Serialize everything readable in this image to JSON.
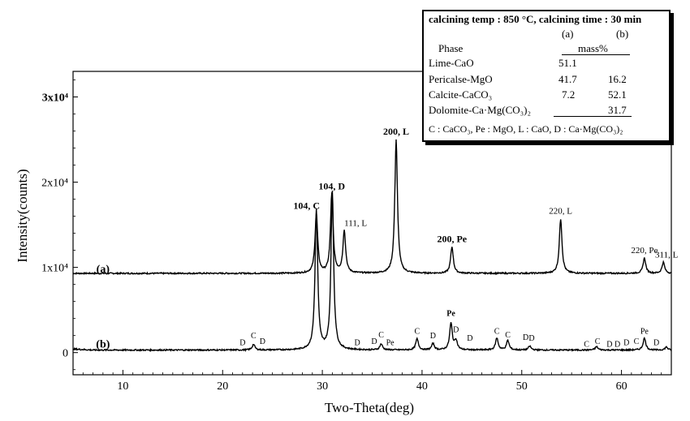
{
  "chart_data": {
    "type": "line",
    "xlabel": "Two-Theta(deg)",
    "ylabel": "Intensity(counts)",
    "xlim": [
      5,
      65
    ],
    "x_ticks": [
      10,
      20,
      30,
      40,
      50,
      60
    ],
    "y_ticks": [
      {
        "value": 0,
        "label": "0"
      },
      {
        "value": 10000,
        "label": "1x10⁴"
      },
      {
        "value": 20000,
        "label": "2x10⁴"
      },
      {
        "value": 30000,
        "label": "3x10⁴"
      }
    ],
    "ylim": [
      -2600,
      33000
    ],
    "series": [
      {
        "name": "(a)",
        "baseline": 9300,
        "peaks": [
          {
            "x": 29.4,
            "h": 7000
          },
          {
            "x": 30.95,
            "h": 9300
          },
          {
            "x": 32.2,
            "h": 5000
          },
          {
            "x": 37.4,
            "h": 15700
          },
          {
            "x": 43.0,
            "h": 3100
          },
          {
            "x": 53.9,
            "h": 6400
          },
          {
            "x": 62.3,
            "h": 1800
          },
          {
            "x": 64.2,
            "h": 1300
          }
        ]
      },
      {
        "name": "(b)",
        "baseline": 300,
        "peaks": [
          {
            "x": 23.1,
            "h": 650
          },
          {
            "x": 29.4,
            "h": 16400
          },
          {
            "x": 31.0,
            "h": 18500
          },
          {
            "x": 35.9,
            "h": 700
          },
          {
            "x": 39.5,
            "h": 1300
          },
          {
            "x": 41.1,
            "h": 750
          },
          {
            "x": 42.9,
            "h": 3100
          },
          {
            "x": 43.4,
            "h": 1100
          },
          {
            "x": 47.5,
            "h": 1400
          },
          {
            "x": 48.6,
            "h": 1100
          },
          {
            "x": 50.8,
            "h": 450
          },
          {
            "x": 57.5,
            "h": 400
          },
          {
            "x": 62.3,
            "h": 1400
          },
          {
            "x": 64.5,
            "h": 350
          }
        ]
      }
    ],
    "peak_labels_a": [
      {
        "text": "104, C",
        "x": 29.4,
        "bold": true
      },
      {
        "text": "104, D",
        "x": 30.95,
        "bold": true
      },
      {
        "text": "111, L",
        "x": 32.2,
        "bold": false
      },
      {
        "text": "200, L",
        "x": 37.4,
        "bold": true
      },
      {
        "text": "200, Pe",
        "x": 43.0,
        "bold": true
      },
      {
        "text": "220, L",
        "x": 53.9,
        "bold": false
      },
      {
        "text": "220, Pe",
        "x": 62.3,
        "bold": false
      },
      {
        "text": "311, L",
        "x": 64.2,
        "bold": false
      }
    ],
    "phase_letters_b": [
      {
        "text": "D",
        "x": 22.0,
        "y": 860
      },
      {
        "text": "C",
        "x": 23.1,
        "y": 1680
      },
      {
        "text": "D",
        "x": 24.0,
        "y": 1040
      },
      {
        "text": "D",
        "x": 33.5,
        "y": 870
      },
      {
        "text": "D",
        "x": 35.2,
        "y": 1040
      },
      {
        "text": "C",
        "x": 35.9,
        "y": 1770
      },
      {
        "text": "Pe",
        "x": 36.8,
        "y": 870
      },
      {
        "text": "C",
        "x": 39.5,
        "y": 2200
      },
      {
        "text": "D",
        "x": 41.1,
        "y": 1680
      },
      {
        "text": "Pe",
        "x": 42.9,
        "y": 4300
      },
      {
        "text": "D",
        "x": 43.4,
        "y": 2380
      },
      {
        "text": "D",
        "x": 44.8,
        "y": 1400
      },
      {
        "text": "C",
        "x": 47.5,
        "y": 2200
      },
      {
        "text": "C",
        "x": 48.6,
        "y": 1770
      },
      {
        "text": "D",
        "x": 50.4,
        "y": 1500
      },
      {
        "text": "D",
        "x": 51.0,
        "y": 1400
      },
      {
        "text": "C",
        "x": 56.5,
        "y": 690
      },
      {
        "text": "C",
        "x": 57.6,
        "y": 1040
      },
      {
        "text": "D",
        "x": 58.8,
        "y": 690
      },
      {
        "text": "D",
        "x": 59.6,
        "y": 690
      },
      {
        "text": "D",
        "x": 60.5,
        "y": 870
      },
      {
        "text": "C",
        "x": 61.5,
        "y": 1040
      },
      {
        "text": "Pe",
        "x": 62.3,
        "y": 2200
      },
      {
        "text": "D",
        "x": 63.5,
        "y": 870
      }
    ],
    "series_labels": [
      {
        "text": "(a)",
        "x": 8.0,
        "y": 9400
      },
      {
        "text": "(b)",
        "x": 8.0,
        "y": 600
      }
    ]
  },
  "table": {
    "title": "calcining temp : 850 °C, calcining time : 30 min",
    "col_a": "(a)",
    "col_b": "(b)",
    "phase_header": "Phase",
    "unit_header": "mass%",
    "rows": [
      {
        "phase": "Lime-CaO",
        "a": "51.1",
        "b": ""
      },
      {
        "phase": "Pericalse-MgO",
        "a": "41.7",
        "b": "16.2"
      },
      {
        "phase": "Calcite-CaCO₃",
        "a": "7.2",
        "b": "52.1"
      },
      {
        "phase": "Dolomite-Ca·Mg(CO₃)₂",
        "a": "",
        "b": "31.7"
      }
    ],
    "footnote": "C : CaCO₃, Pe : MgO, L : CaO, D : Ca·Mg(CO₃)₂"
  }
}
